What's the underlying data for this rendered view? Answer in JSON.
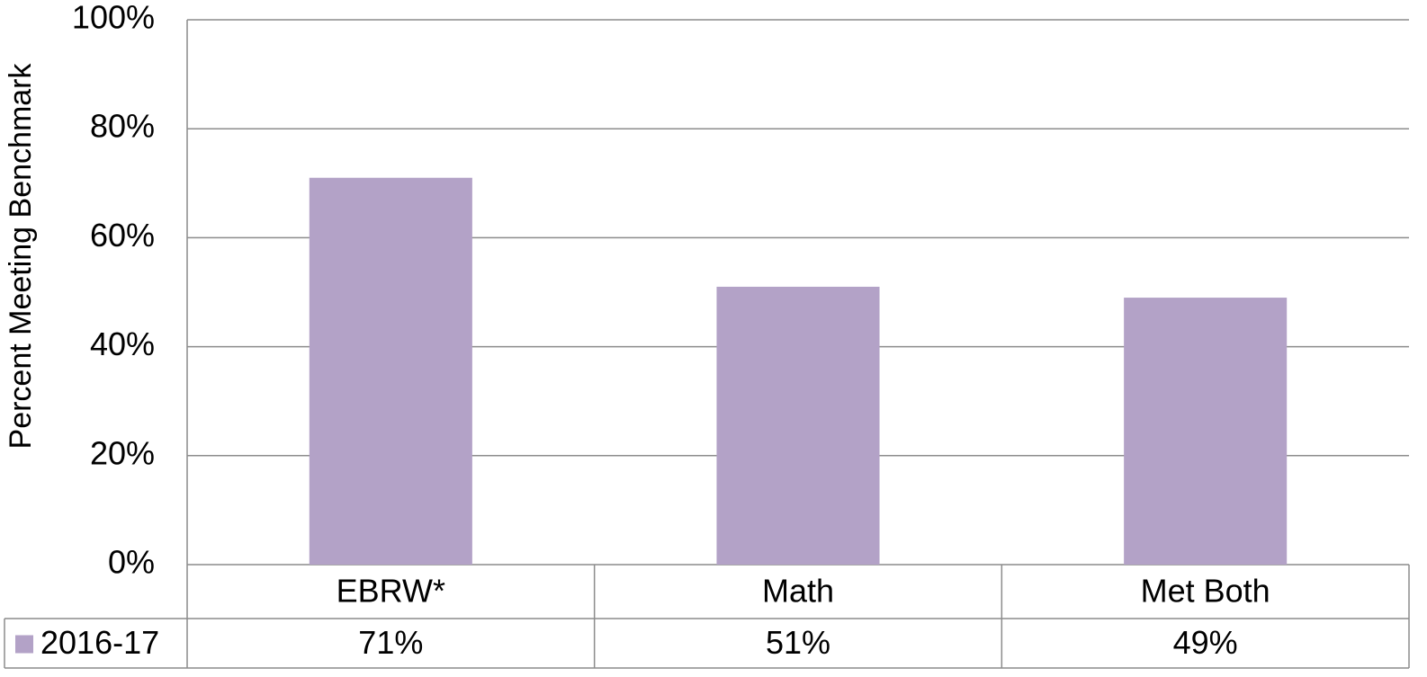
{
  "chart_data": {
    "type": "bar",
    "y_label": "Percent Meeting Benchmark",
    "categories": [
      "EBRW*",
      "Math",
      "Met Both"
    ],
    "series": [
      {
        "name": "2016-17",
        "color": "#b3a2c7",
        "values": [
          71,
          51,
          49
        ],
        "value_labels": [
          "71%",
          "51%",
          "49%"
        ]
      }
    ],
    "ylim": [
      0,
      100
    ],
    "yticks": [
      {
        "value": 0,
        "label": "0%"
      },
      {
        "value": 20,
        "label": "20%"
      },
      {
        "value": 40,
        "label": "40%"
      },
      {
        "value": 60,
        "label": "60%"
      },
      {
        "value": 80,
        "label": "80%"
      },
      {
        "value": 100,
        "label": "100%"
      }
    ],
    "grid": true,
    "legend": "table"
  }
}
